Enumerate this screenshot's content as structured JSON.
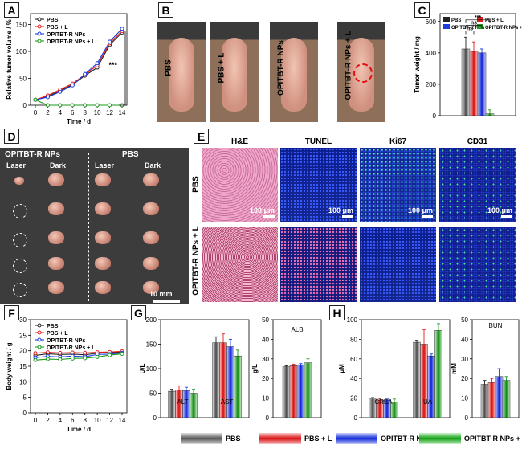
{
  "panel_labels": [
    "A",
    "B",
    "C",
    "D",
    "E",
    "F",
    "G",
    "H"
  ],
  "series_names": [
    "PBS",
    "PBS + L",
    "OPITBT-R NPs",
    "OPITBT-R NPs + L"
  ],
  "colors": {
    "PBS": "#222222",
    "PBS + L": "#e0201c",
    "OPITBT-R NPs": "#1f3ce0",
    "OPITBT-R NPs + L": "#1e9a1e"
  },
  "mice": {
    "labels": [
      "PBS",
      "PBS + L",
      "OPITBT-R NPs",
      "OPITBT-R NPs + L"
    ]
  },
  "tumor_photo": {
    "left_title": "OPITBT-R NPs",
    "right_title": "PBS",
    "laser": "Laser",
    "dark": "Dark",
    "scale": "10 mm"
  },
  "histology": {
    "columns": [
      "H&E",
      "TUNEL",
      "Ki67",
      "CD31"
    ],
    "rows": [
      "PBS",
      "OPITBT-R NPs + L"
    ],
    "scale": "100 μm"
  },
  "bottom_legend": [
    "PBS",
    "PBS + L",
    "OPITBT-R NPs",
    "OPITBT-R NPs + L"
  ],
  "chart_data": [
    {
      "id": "A",
      "type": "line",
      "xlabel": "Time / d",
      "ylabel": "Relative tumor volume / %",
      "x": [
        0,
        2,
        4,
        6,
        8,
        10,
        12,
        14
      ],
      "xticks": [
        0,
        2,
        4,
        6,
        8,
        10,
        12,
        14
      ],
      "yticks": [
        0,
        50,
        100,
        150
      ],
      "ylim": [
        0,
        170
      ],
      "series": [
        {
          "name": "PBS",
          "values": [
            10,
            16,
            27,
            38,
            55,
            70,
            112,
            135
          ]
        },
        {
          "name": "PBS + L",
          "values": [
            10,
            18,
            29,
            40,
            57,
            74,
            115,
            138
          ]
        },
        {
          "name": "OPITBT-R NPs",
          "values": [
            10,
            15,
            25,
            37,
            58,
            78,
            118,
            142
          ]
        },
        {
          "name": "OPITBT-R NPs + L",
          "values": [
            10,
            0,
            0,
            0,
            0,
            0,
            0,
            0
          ]
        }
      ],
      "annotation": "***"
    },
    {
      "id": "C",
      "type": "bar",
      "ylabel": "Tumor weight / mg",
      "yticks": [
        0,
        200,
        400,
        600
      ],
      "ylim": [
        0,
        650
      ],
      "series": [
        {
          "name": "PBS",
          "values": [
            425
          ],
          "errors": [
            75
          ]
        },
        {
          "name": "PBS + L",
          "values": [
            410
          ],
          "errors": [
            60
          ]
        },
        {
          "name": "OPITBT-R NPs",
          "values": [
            400
          ],
          "errors": [
            25
          ]
        },
        {
          "name": "OPITBT-R NPs + L",
          "values": [
            12
          ],
          "errors": [
            25
          ]
        }
      ],
      "annotations": [
        "ns",
        "ns",
        "***"
      ]
    },
    {
      "id": "F",
      "type": "line",
      "xlabel": "Time / d",
      "ylabel": "Body weight / g",
      "x": [
        0,
        2,
        4,
        6,
        8,
        10,
        12,
        14
      ],
      "xticks": [
        0,
        2,
        4,
        6,
        8,
        10,
        12,
        14
      ],
      "yticks": [
        0,
        5,
        10,
        15,
        20,
        25,
        30
      ],
      "ylim": [
        0,
        30
      ],
      "series": [
        {
          "name": "PBS",
          "values": [
            18.5,
            19,
            18.8,
            18.9,
            18.7,
            19.2,
            19.4,
            19.6
          ]
        },
        {
          "name": "PBS + L",
          "values": [
            19.2,
            19.5,
            19.3,
            19.4,
            19.3,
            19.5,
            19.6,
            19.8
          ]
        },
        {
          "name": "OPITBT-R NPs",
          "values": [
            17.8,
            18.2,
            18.0,
            18.3,
            18.1,
            18.8,
            18.9,
            19.3
          ]
        },
        {
          "name": "OPITBT-R NPs + L",
          "values": [
            17.0,
            17.3,
            17.2,
            17.5,
            17.6,
            18.0,
            18.6,
            19.0
          ]
        }
      ]
    },
    {
      "id": "G1",
      "type": "bar",
      "ylabel": "U/L",
      "categories": [
        "ALT",
        "AST"
      ],
      "yticks": [
        0,
        50,
        100,
        150,
        200
      ],
      "ylim": [
        0,
        200
      ],
      "series": [
        {
          "name": "PBS",
          "values": [
            54,
            153
          ],
          "errors": [
            4,
            12
          ]
        },
        {
          "name": "PBS + L",
          "values": [
            57,
            153
          ],
          "errors": [
            8,
            18
          ]
        },
        {
          "name": "OPITBT-R NPs",
          "values": [
            55,
            145
          ],
          "errors": [
            7,
            15
          ]
        },
        {
          "name": "OPITBT-R NPs + L",
          "values": [
            50,
            126
          ],
          "errors": [
            8,
            12
          ]
        }
      ]
    },
    {
      "id": "G2",
      "type": "bar",
      "ylabel": "g/L",
      "categories": [
        "ALB"
      ],
      "yticks": [
        0,
        10,
        20,
        30,
        40,
        50
      ],
      "ylim": [
        0,
        50
      ],
      "series": [
        {
          "name": "PBS",
          "values": [
            26
          ],
          "errors": [
            0.5
          ]
        },
        {
          "name": "PBS + L",
          "values": [
            26.5
          ],
          "errors": [
            0.8
          ]
        },
        {
          "name": "OPITBT-R NPs",
          "values": [
            27
          ],
          "errors": [
            0.6
          ]
        },
        {
          "name": "OPITBT-R NPs + L",
          "values": [
            28
          ],
          "errors": [
            2
          ]
        }
      ]
    },
    {
      "id": "H1",
      "type": "bar",
      "ylabel": "μM",
      "categories": [
        "CREA",
        "UA"
      ],
      "yticks": [
        0,
        20,
        40,
        60,
        80,
        100
      ],
      "ylim": [
        0,
        100
      ],
      "series": [
        {
          "name": "PBS",
          "values": [
            19,
            77
          ],
          "errors": [
            1.5,
            2
          ]
        },
        {
          "name": "PBS + L",
          "values": [
            18,
            75
          ],
          "errors": [
            1.5,
            15
          ]
        },
        {
          "name": "OPITBT-R NPs",
          "values": [
            18,
            63
          ],
          "errors": [
            1,
            2
          ]
        },
        {
          "name": "OPITBT-R NPs + L",
          "values": [
            16,
            89
          ],
          "errors": [
            3,
            7
          ]
        }
      ]
    },
    {
      "id": "H2",
      "type": "bar",
      "ylabel": "mM",
      "categories": [
        "BUN"
      ],
      "yticks": [
        0,
        10,
        20,
        30,
        40,
        50
      ],
      "ylim": [
        0,
        50
      ],
      "series": [
        {
          "name": "PBS",
          "values": [
            17
          ],
          "errors": [
            2
          ]
        },
        {
          "name": "PBS + L",
          "values": [
            18
          ],
          "errors": [
            2
          ]
        },
        {
          "name": "OPITBT-R NPs",
          "values": [
            21
          ],
          "errors": [
            4
          ]
        },
        {
          "name": "OPITBT-R NPs + L",
          "values": [
            19
          ],
          "errors": [
            2
          ]
        }
      ]
    }
  ]
}
